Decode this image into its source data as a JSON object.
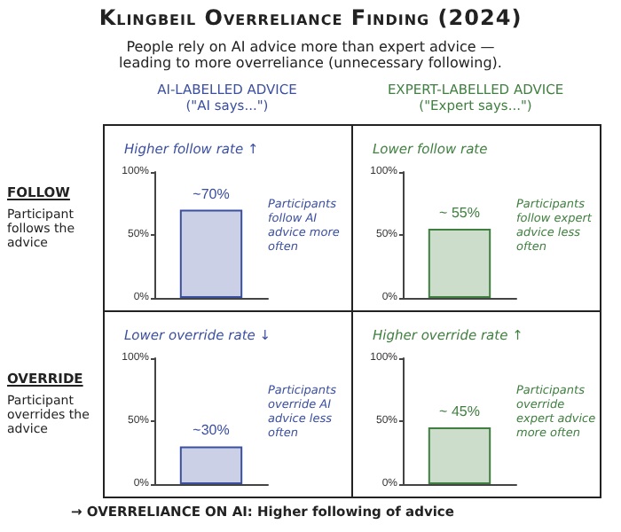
{
  "chart_data": [
    {
      "type": "other",
      "title": "Klingbeil Overreliance Finding (2024)",
      "subtitle": "People rely on AI advice more than expert advice — leading to more overreliance (unnecessary following).",
      "annotations": [
        "AI-LABELLED ADVICE\n(\"AI says...\")",
        "EXPERT-LABELLED ADVICE\n(\"Expert says...\")",
        "FOLLOW",
        "Participant follows the advice",
        "OVERRIDE",
        "Participant overrides the advice",
        "→ OVERRELIANCE ON AI: Higher following of advice"
      ]
    },
    {
      "type": "bar",
      "title": "Higher follow rate ↑",
      "categories": [
        null
      ],
      "values": [
        70
      ],
      "value_labels": [
        "~70%"
      ],
      "color": "#3b4fa0",
      "ylim": [
        0,
        100
      ],
      "yticks": [
        {
          "value": 0,
          "label": "0%"
        },
        {
          "value": 50,
          "label": "50%"
        },
        {
          "value": 100,
          "label": "100%"
        }
      ],
      "tick_labels": "y",
      "annotations": [
        "Participants follow AI advice more often"
      ]
    },
    {
      "type": "bar",
      "title": "Lower follow rate",
      "categories": [
        null
      ],
      "values": [
        55
      ],
      "value_labels": [
        "~ 55%"
      ],
      "color": "#3f7f3f",
      "ylim": [
        0,
        100
      ],
      "yticks": [
        {
          "value": 0,
          "label": "0%"
        },
        {
          "value": 50,
          "label": "50%"
        },
        {
          "value": 100,
          "label": "100%"
        }
      ],
      "tick_labels": "y",
      "annotations": [
        "Participants follow expert advice less often"
      ]
    },
    {
      "type": "bar",
      "title": "Lower override rate ↓",
      "categories": [
        null
      ],
      "values": [
        30
      ],
      "value_labels": [
        "~30%"
      ],
      "color": "#3b4fa0",
      "ylim": [
        0,
        100
      ],
      "yticks": [
        {
          "value": 0,
          "label": "0%"
        },
        {
          "value": 50,
          "label": "50%"
        },
        {
          "value": 100,
          "label": "100%"
        }
      ],
      "tick_labels": "y",
      "annotations": [
        "Participants override AI advice less often"
      ]
    },
    {
      "type": "bar",
      "title": "Higher override rate ↑",
      "categories": [
        null
      ],
      "values": [
        45
      ],
      "value_labels": [
        "~ 45%"
      ],
      "color": "#3f7f3f",
      "ylim": [
        0,
        100
      ],
      "yticks": [
        {
          "value": 0,
          "label": "0%"
        },
        {
          "value": 50,
          "label": "50%"
        },
        {
          "value": 100,
          "label": "100%"
        }
      ],
      "tick_labels": "y",
      "annotations": [
        "Participants override expert advice more often"
      ]
    }
  ]
}
